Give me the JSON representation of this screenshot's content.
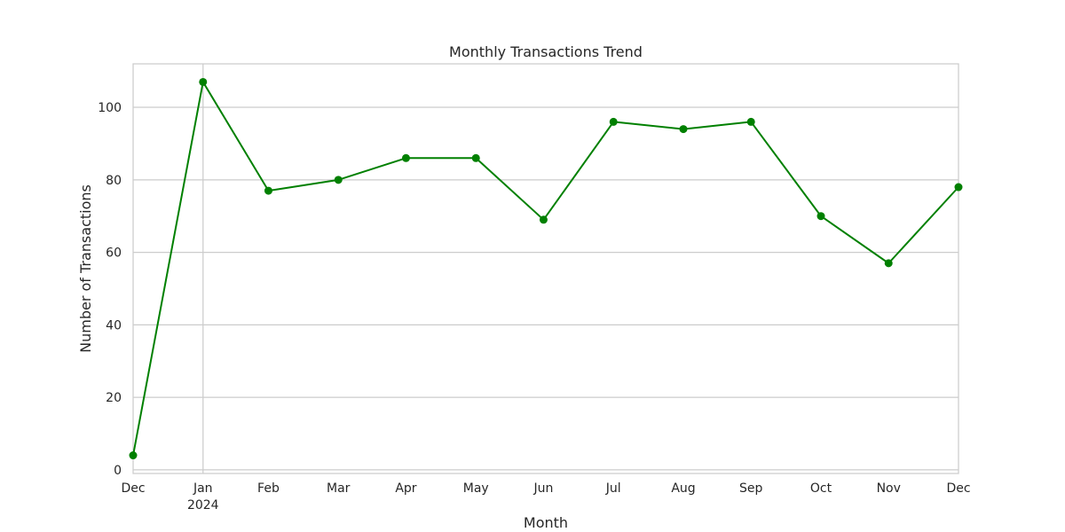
{
  "chart_data": {
    "type": "line",
    "title": "Monthly Transactions Trend",
    "xlabel": "Month",
    "ylabel": "Number of Transactions",
    "ylim": [
      -1,
      112
    ],
    "yticks": [
      0,
      20,
      40,
      60,
      80,
      100
    ],
    "grid": true,
    "categories": [
      "Dec",
      "Jan",
      "Feb",
      "Mar",
      "Apr",
      "May",
      "Jun",
      "Jul",
      "Aug",
      "Sep",
      "Oct",
      "Nov",
      "Dec"
    ],
    "x_dates": [
      "2023-12-31",
      "2024-01-31",
      "2024-02-29",
      "2024-03-31",
      "2024-04-30",
      "2024-05-31",
      "2024-06-30",
      "2024-07-31",
      "2024-08-31",
      "2024-09-30",
      "2024-10-31",
      "2024-11-30",
      "2024-12-31"
    ],
    "x_sublabels": [
      "",
      "2024",
      "",
      "",
      "",
      "",
      "",
      "",
      "",
      "",
      "",
      "",
      ""
    ],
    "series": [
      {
        "values": [
          4,
          107,
          77,
          80,
          86,
          86,
          69,
          96,
          94,
          96,
          70,
          57,
          78
        ],
        "color": "#008000",
        "marker": "circle"
      }
    ]
  }
}
